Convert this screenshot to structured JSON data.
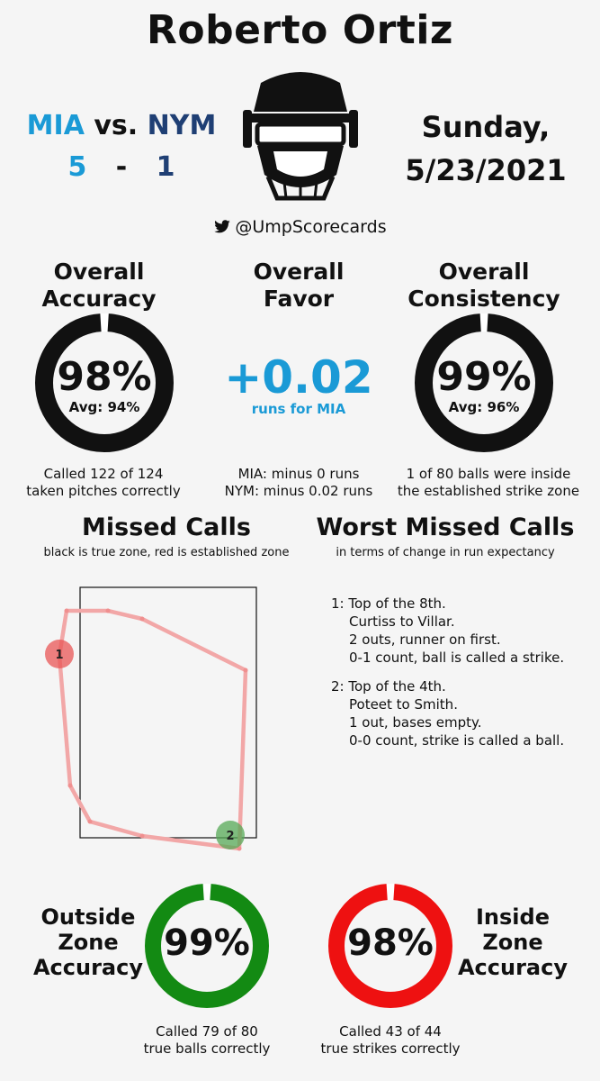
{
  "header": {
    "title": "Roberto Ortiz",
    "away_team": "MIA",
    "vs": "vs.",
    "home_team": "NYM",
    "away_score": "5",
    "dash": "-",
    "home_score": "1",
    "date_day": "Sunday,",
    "date": "5/23/2021",
    "handle": "@UmpScorecards"
  },
  "overall": {
    "accuracy": {
      "title_line1": "Overall",
      "title_line2": "Accuracy",
      "value": "98%",
      "avg": "Avg: 94%",
      "fraction": 0.98,
      "caption_line1": "Called 122 of 124",
      "caption_line2": "taken pitches correctly"
    },
    "favor": {
      "title_line1": "Overall",
      "title_line2": "Favor",
      "value": "+0.02",
      "subtitle": "runs for MIA",
      "caption_line1": "MIA: minus 0 runs",
      "caption_line2": "NYM: minus 0.02 runs"
    },
    "consistency": {
      "title_line1": "Overall",
      "title_line2": "Consistency",
      "value": "99%",
      "avg": "Avg: 96%",
      "fraction": 0.99,
      "caption_line1": "1 of 80 balls were inside",
      "caption_line2": "the established strike zone"
    }
  },
  "missed_calls": {
    "title": "Missed Calls",
    "subtitle": "black is true zone, red is established zone",
    "markers": [
      {
        "label": "1",
        "color": "#e85555"
      },
      {
        "label": "2",
        "color": "#55a855"
      }
    ]
  },
  "worst_missed": {
    "title": "Worst Missed Calls",
    "subtitle": "in terms of change in run expectancy",
    "items": [
      {
        "num": "1:",
        "line1": "Top of the 8th.",
        "line2": "Curtiss to Villar.",
        "line3": "2 outs, runner on first.",
        "line4": "0-1 count, ball is called a strike."
      },
      {
        "num": "2:",
        "line1": "Top of the 4th.",
        "line2": "Poteet to Smith.",
        "line3": "1 out, bases empty.",
        "line4": "0-0 count, strike is called a ball."
      }
    ]
  },
  "zone": {
    "outside": {
      "label_line1": "Outside",
      "label_line2": "Zone",
      "label_line3": "Accuracy",
      "value": "99%",
      "fraction": 0.99,
      "color": "#138a13",
      "caption_line1": "Called 79 of 80",
      "caption_line2": "true balls correctly"
    },
    "inside": {
      "label_line1": "Inside",
      "label_line2": "Zone",
      "label_line3": "Accuracy",
      "value": "98%",
      "fraction": 0.98,
      "color": "#ee1111",
      "caption_line1": "Called 43 of 44",
      "caption_line2": "true strikes correctly"
    }
  }
}
